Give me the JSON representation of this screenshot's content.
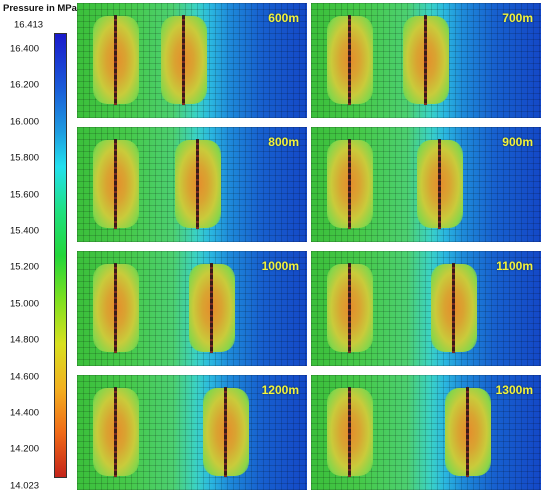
{
  "legend": {
    "title": "Pressure  in MPa",
    "max": "16.413",
    "min": "14.023",
    "ticks": [
      "16.400",
      "16.200",
      "16.000",
      "15.800",
      "15.600",
      "15.400",
      "15.200",
      "15.000",
      "14.800",
      "14.600",
      "14.400",
      "14.200"
    ]
  },
  "panels": [
    {
      "label": "600m"
    },
    {
      "label": "700m"
    },
    {
      "label": "800m"
    },
    {
      "label": "900m"
    },
    {
      "label": "1000m"
    },
    {
      "label": "1100m"
    },
    {
      "label": "1200m"
    },
    {
      "label": "1300m"
    }
  ],
  "colors": {
    "low_pressure": "#c4241a",
    "mid_pressure": "#22d63a",
    "high_pressure": "#1a1acc",
    "label": "#f3f33a"
  }
}
